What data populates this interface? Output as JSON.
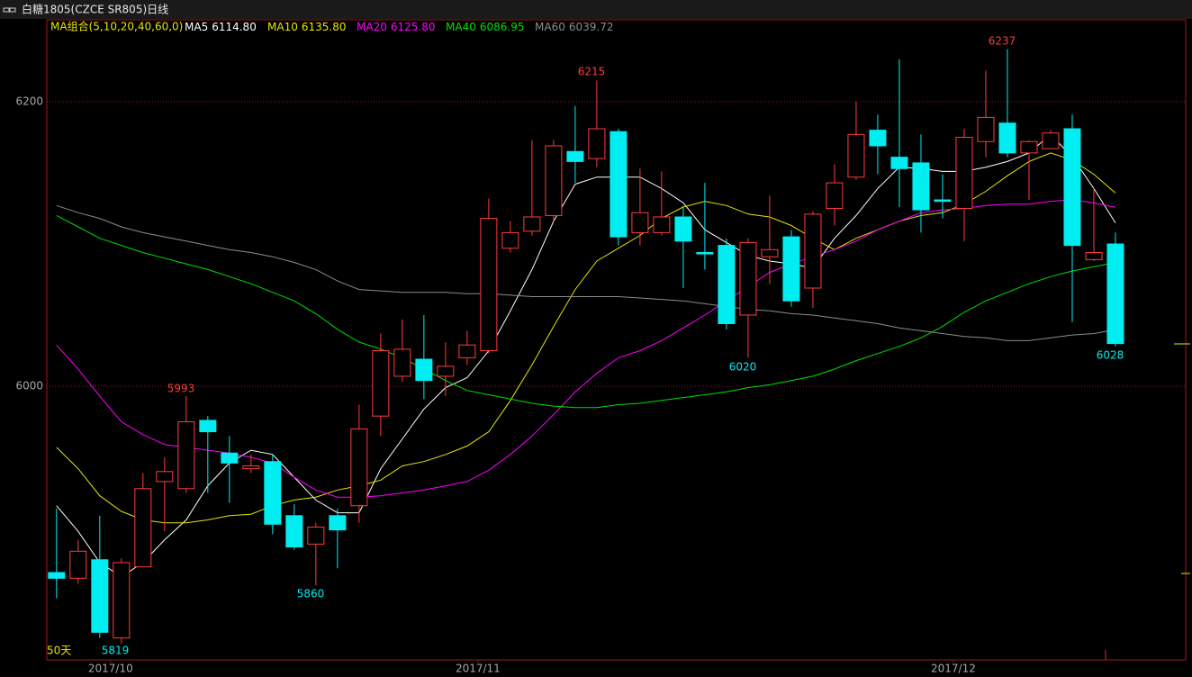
{
  "chart_data": {
    "type": "candlestick",
    "title": "白糖1805(CZCE SR805)日线",
    "legend_title": "MA组合(5,10,20,40,60,0)",
    "period_label": "50天",
    "up_color": "#ff3c3c",
    "down_color": "#00eef2",
    "grid": true,
    "ylim": [
      5807.6,
      6257.6
    ],
    "yticks": [
      6000,
      6200
    ],
    "xlim": [
      -0.45,
      52.25
    ],
    "xticks": [
      {
        "value": 2.5,
        "label": "2017/10"
      },
      {
        "value": 19.5,
        "label": "2017/11"
      },
      {
        "value": 41.5,
        "label": "2017/12"
      }
    ],
    "open": [
      5869,
      5865,
      5878,
      5823,
      5873,
      5933,
      5928,
      5976,
      5953,
      5942,
      5947,
      5909,
      5889,
      5909,
      5916,
      5979,
      6007,
      6019,
      6007,
      6020,
      6025,
      6097,
      6109,
      6120,
      6165,
      6160,
      6179,
      6108,
      6108,
      6119,
      6094,
      6099,
      6050,
      6091,
      6105,
      6069,
      6125,
      6147,
      6180,
      6161,
      6157,
      6131,
      6125,
      6172,
      6185,
      6164,
      6167,
      6181,
      6089,
      6100
    ],
    "high": [
      5914,
      5892,
      5909,
      5879,
      5939,
      5950,
      5993,
      5979,
      5965,
      5952,
      5952,
      5917,
      5904,
      5914,
      5987,
      6037,
      6047,
      6050,
      6031,
      6039,
      6132,
      6116,
      6173,
      6173,
      6197,
      6215,
      6181,
      6153,
      6151,
      6126,
      6143,
      6104,
      6104,
      6134,
      6110,
      6123,
      6156,
      6200,
      6191,
      6230,
      6177,
      6149,
      6181,
      6222,
      6237,
      6173,
      6180,
      6191,
      6139,
      6108
    ],
    "low": [
      5851,
      5861,
      5823,
      5819,
      5873,
      5898,
      5925,
      5925,
      5918,
      5939,
      5896,
      5885,
      5860,
      5872,
      5904,
      5965,
      6003,
      5991,
      5993,
      6015,
      6023,
      6094,
      6106,
      6116,
      6143,
      6154,
      6099,
      6099,
      6106,
      6069,
      6082,
      6040,
      6020,
      6072,
      6056,
      6055,
      6113,
      6145,
      6149,
      6126,
      6108,
      6118,
      6102,
      6161,
      6161,
      6131,
      6167,
      6045,
      6088,
      6028
    ],
    "close": [
      5865,
      5884,
      5827,
      5876,
      5928,
      5940,
      5975,
      5968,
      5946,
      5944,
      5903,
      5887,
      5901,
      5899,
      5970,
      6025,
      6026,
      6004,
      6014,
      6029,
      6118,
      6108,
      6119,
      6169,
      6158,
      6181,
      6105,
      6122,
      6119,
      6102,
      6093,
      6044,
      6101,
      6096,
      6060,
      6121,
      6143,
      6177,
      6169,
      6153,
      6124,
      6130,
      6175,
      6189,
      6164,
      6172,
      6178,
      6099,
      6094,
      6030
    ],
    "series": [
      {
        "name": "MA5",
        "last_label": "6114.80",
        "color": "#ffffff",
        "values": [
          5916,
          5898,
          5876,
          5866,
          5876,
          5892,
          5906,
          5930,
          5946,
          5955,
          5952,
          5936,
          5920,
          5911,
          5911,
          5942,
          5963,
          5984,
          5999,
          6006,
          6025,
          6053,
          6082,
          6116,
          6142,
          6147,
          6147,
          6147,
          6139,
          6129,
          6110,
          6101,
          6092,
          6088,
          6086,
          6083,
          6104,
          6120,
          6139,
          6154,
          6153,
          6151,
          6151,
          6154,
          6158,
          6164,
          6177,
          6161,
          6139,
          6114.8
        ]
      },
      {
        "name": "MA10",
        "last_label": "6135.80",
        "color": "#e6e600",
        "values": [
          5957,
          5942,
          5923,
          5912,
          5906,
          5904,
          5904,
          5906,
          5909,
          5910,
          5916,
          5920,
          5922,
          5927,
          5930,
          5934,
          5944,
          5947,
          5952,
          5958,
          5968,
          5990,
          6015,
          6042,
          6068,
          6088,
          6097,
          6106,
          6118,
          6126,
          6130,
          6127,
          6121,
          6119,
          6113,
          6104,
          6096,
          6104,
          6110,
          6116,
          6120,
          6122,
          6128,
          6137,
          6148,
          6158,
          6164,
          6159,
          6149,
          6135.8
        ]
      },
      {
        "name": "MA20",
        "last_label": "6125.80",
        "color": "#ff00ff",
        "values": [
          6029,
          6012,
          5993,
          5975,
          5966,
          5959,
          5957,
          5955,
          5953,
          5950,
          5946,
          5936,
          5927,
          5922,
          5922,
          5923,
          5925,
          5927,
          5930,
          5933,
          5941,
          5952,
          5965,
          5980,
          5996,
          6009,
          6020,
          6025,
          6032,
          6041,
          6050,
          6060,
          6070,
          6080,
          6086,
          6091,
          6096,
          6102,
          6110,
          6116,
          6122,
          6124,
          6125,
          6127,
          6128,
          6128,
          6130,
          6131,
          6129,
          6125.8
        ]
      },
      {
        "name": "MA40",
        "last_label": "6086.95",
        "color": "#00e000",
        "values": [
          6120,
          6112,
          6104,
          6099,
          6094,
          6090,
          6086,
          6082,
          6077,
          6072,
          6066,
          6060,
          6051,
          6040,
          6031,
          6026,
          6020,
          6012,
          6004,
          5997,
          5994,
          5991,
          5988,
          5986,
          5985,
          5985,
          5987,
          5988,
          5990,
          5992,
          5994,
          5996,
          5999,
          6001,
          6004,
          6007,
          6012,
          6018,
          6023,
          6028,
          6034,
          6042,
          6052,
          6060,
          6066,
          6072,
          6077,
          6081,
          6084,
          6086.95
        ]
      },
      {
        "name": "MA60",
        "last_label": "6039.72",
        "color": "#8c8c8c",
        "values": [
          6127,
          6122,
          6118,
          6112,
          6108,
          6105,
          6102,
          6099,
          6096,
          6094,
          6091,
          6087,
          6082,
          6074,
          6068,
          6067,
          6066,
          6066,
          6066,
          6065,
          6065,
          6064,
          6063,
          6063,
          6063,
          6063,
          6063,
          6062,
          6061,
          6060,
          6058,
          6056,
          6054,
          6053,
          6051,
          6050,
          6048,
          6046,
          6044,
          6041,
          6039,
          6037,
          6035,
          6034,
          6032,
          6032,
          6034,
          6036,
          6037,
          6039.72
        ]
      }
    ]
  }
}
